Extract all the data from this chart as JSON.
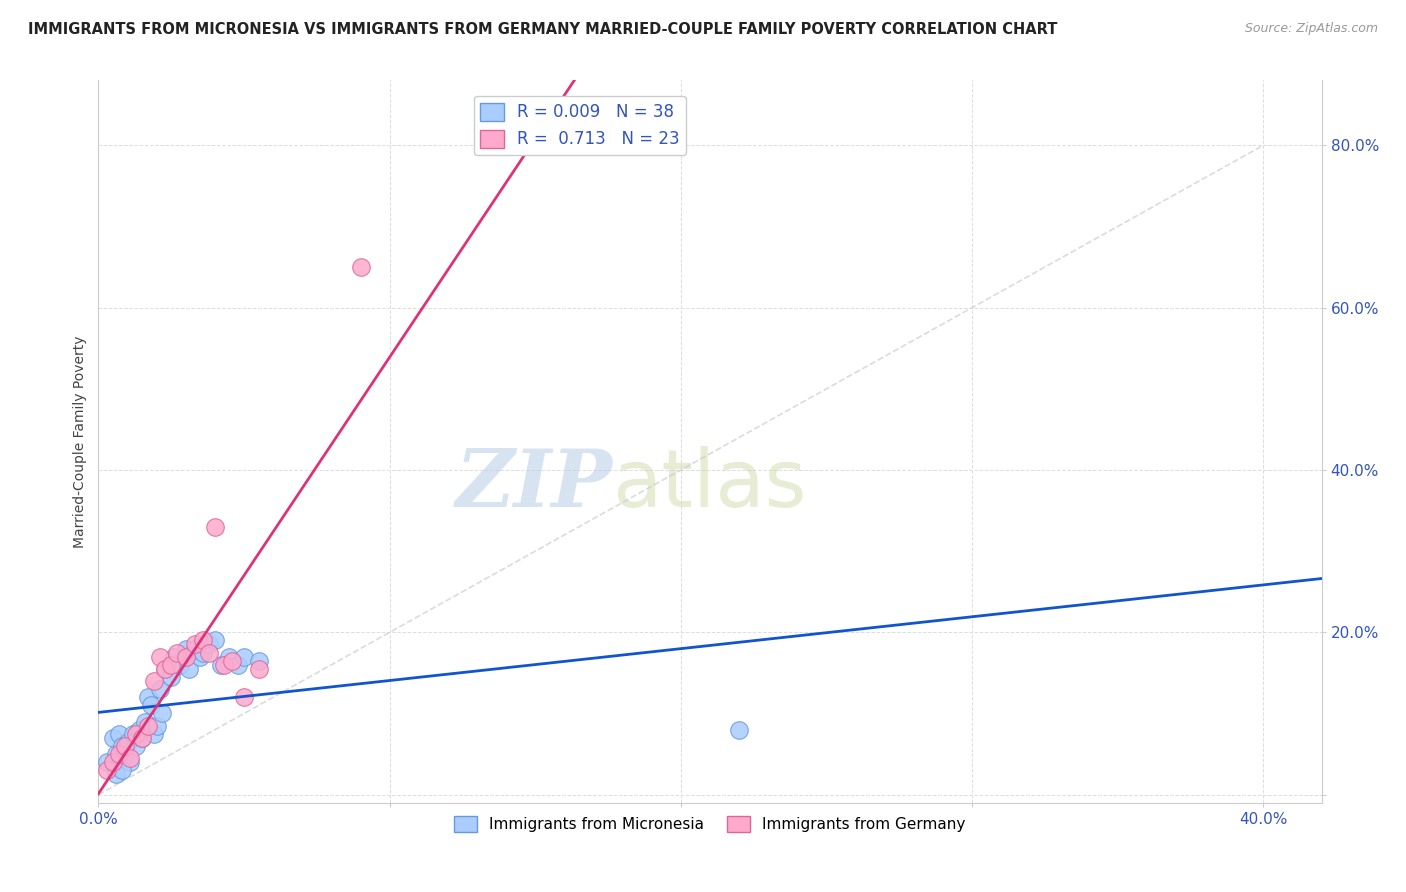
{
  "title": "IMMIGRANTS FROM MICRONESIA VS IMMIGRANTS FROM GERMANY MARRIED-COUPLE FAMILY POVERTY CORRELATION CHART",
  "source": "Source: ZipAtlas.com",
  "ylabel": "Married-Couple Family Poverty",
  "xlabel": "",
  "xlim": [
    0.0,
    0.42
  ],
  "ylim": [
    -0.01,
    0.88
  ],
  "xticks": [
    0.0,
    0.1,
    0.2,
    0.3,
    0.4
  ],
  "xtick_labels": [
    "0.0%",
    "",
    "",
    "",
    "40.0%"
  ],
  "yticks": [
    0.0,
    0.2,
    0.4,
    0.6,
    0.8
  ],
  "ytick_labels": [
    "",
    "20.0%",
    "40.0%",
    "60.0%",
    "80.0%"
  ],
  "grid_color": "#dddddd",
  "micronesia_color": "#aaccff",
  "germany_color": "#ffaacc",
  "micronesia_edge": "#6699dd",
  "germany_edge": "#dd6699",
  "micronesia_R": 0.009,
  "micronesia_N": 38,
  "germany_R": 0.713,
  "germany_N": 23,
  "micronesia_trend_color": "#1155cc",
  "germany_trend_color": "#dd3377",
  "diagonal_color": "#cccccc",
  "watermark_zip": "ZIP",
  "watermark_atlas": "atlas",
  "micronesia_x": [
    0.003,
    0.005,
    0.006,
    0.007,
    0.008,
    0.009,
    0.01,
    0.011,
    0.012,
    0.013,
    0.014,
    0.015,
    0.016,
    0.017,
    0.018,
    0.019,
    0.02,
    0.021,
    0.022,
    0.023,
    0.025,
    0.026,
    0.028,
    0.03,
    0.031,
    0.033,
    0.035,
    0.036,
    0.038,
    0.04,
    0.042,
    0.045,
    0.048,
    0.05,
    0.055,
    0.22,
    0.006,
    0.008
  ],
  "micronesia_y": [
    0.04,
    0.07,
    0.05,
    0.075,
    0.06,
    0.05,
    0.065,
    0.04,
    0.075,
    0.06,
    0.08,
    0.07,
    0.09,
    0.12,
    0.11,
    0.075,
    0.085,
    0.13,
    0.1,
    0.155,
    0.145,
    0.17,
    0.16,
    0.18,
    0.155,
    0.18,
    0.17,
    0.175,
    0.185,
    0.19,
    0.16,
    0.17,
    0.16,
    0.17,
    0.165,
    0.08,
    0.025,
    0.03
  ],
  "germany_x": [
    0.003,
    0.005,
    0.007,
    0.009,
    0.011,
    0.013,
    0.015,
    0.017,
    0.019,
    0.021,
    0.023,
    0.025,
    0.027,
    0.03,
    0.033,
    0.036,
    0.038,
    0.04,
    0.043,
    0.046,
    0.05,
    0.055,
    0.09
  ],
  "germany_y": [
    0.03,
    0.04,
    0.05,
    0.06,
    0.045,
    0.075,
    0.07,
    0.085,
    0.14,
    0.17,
    0.155,
    0.16,
    0.175,
    0.17,
    0.185,
    0.19,
    0.175,
    0.33,
    0.16,
    0.165,
    0.12,
    0.155,
    0.65
  ],
  "legend_R_label1": "R = 0.009",
  "legend_N_label1": "N = 38",
  "legend_R_label2": "R =  0.713",
  "legend_N_label2": "N = 23",
  "bottom_label1": "Immigrants from Micronesia",
  "bottom_label2": "Immigrants from Germany"
}
